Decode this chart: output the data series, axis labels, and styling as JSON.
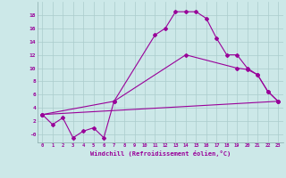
{
  "xlabel": "Windchill (Refroidissement éolien,°C)",
  "bg_color": "#cce8e8",
  "grid_color": "#aacccc",
  "line_color": "#990099",
  "line1_x": [
    0,
    1,
    2,
    3,
    4,
    5,
    6,
    7,
    11,
    12,
    13,
    14,
    15,
    16,
    17,
    18,
    19,
    20,
    21,
    22,
    23
  ],
  "line1_y": [
    3.0,
    1.5,
    2.5,
    -0.5,
    0.5,
    1.0,
    -0.5,
    5.0,
    15.0,
    16.0,
    18.5,
    18.5,
    18.5,
    17.5,
    14.5,
    12.0,
    12.0,
    10.0,
    9.0,
    6.5,
    5.0
  ],
  "line2_x": [
    0,
    23
  ],
  "line2_y": [
    3.0,
    5.0
  ],
  "line3_x": [
    0,
    7,
    14,
    19,
    20,
    21,
    22,
    23
  ],
  "line3_y": [
    3.0,
    5.0,
    12.0,
    10.0,
    9.8,
    9.0,
    6.5,
    5.0
  ],
  "ylim": [
    -1.2,
    20
  ],
  "xlim": [
    -0.5,
    23.5
  ],
  "yticks": [
    0,
    2,
    4,
    6,
    8,
    10,
    12,
    14,
    16,
    18
  ],
  "ytick_labels": [
    "-0",
    "2",
    "4",
    "6",
    "8",
    "10",
    "12",
    "14",
    "16",
    "18"
  ],
  "xticks": [
    0,
    1,
    2,
    3,
    4,
    5,
    6,
    7,
    8,
    9,
    10,
    11,
    12,
    13,
    14,
    15,
    16,
    17,
    18,
    19,
    20,
    21,
    22,
    23
  ]
}
